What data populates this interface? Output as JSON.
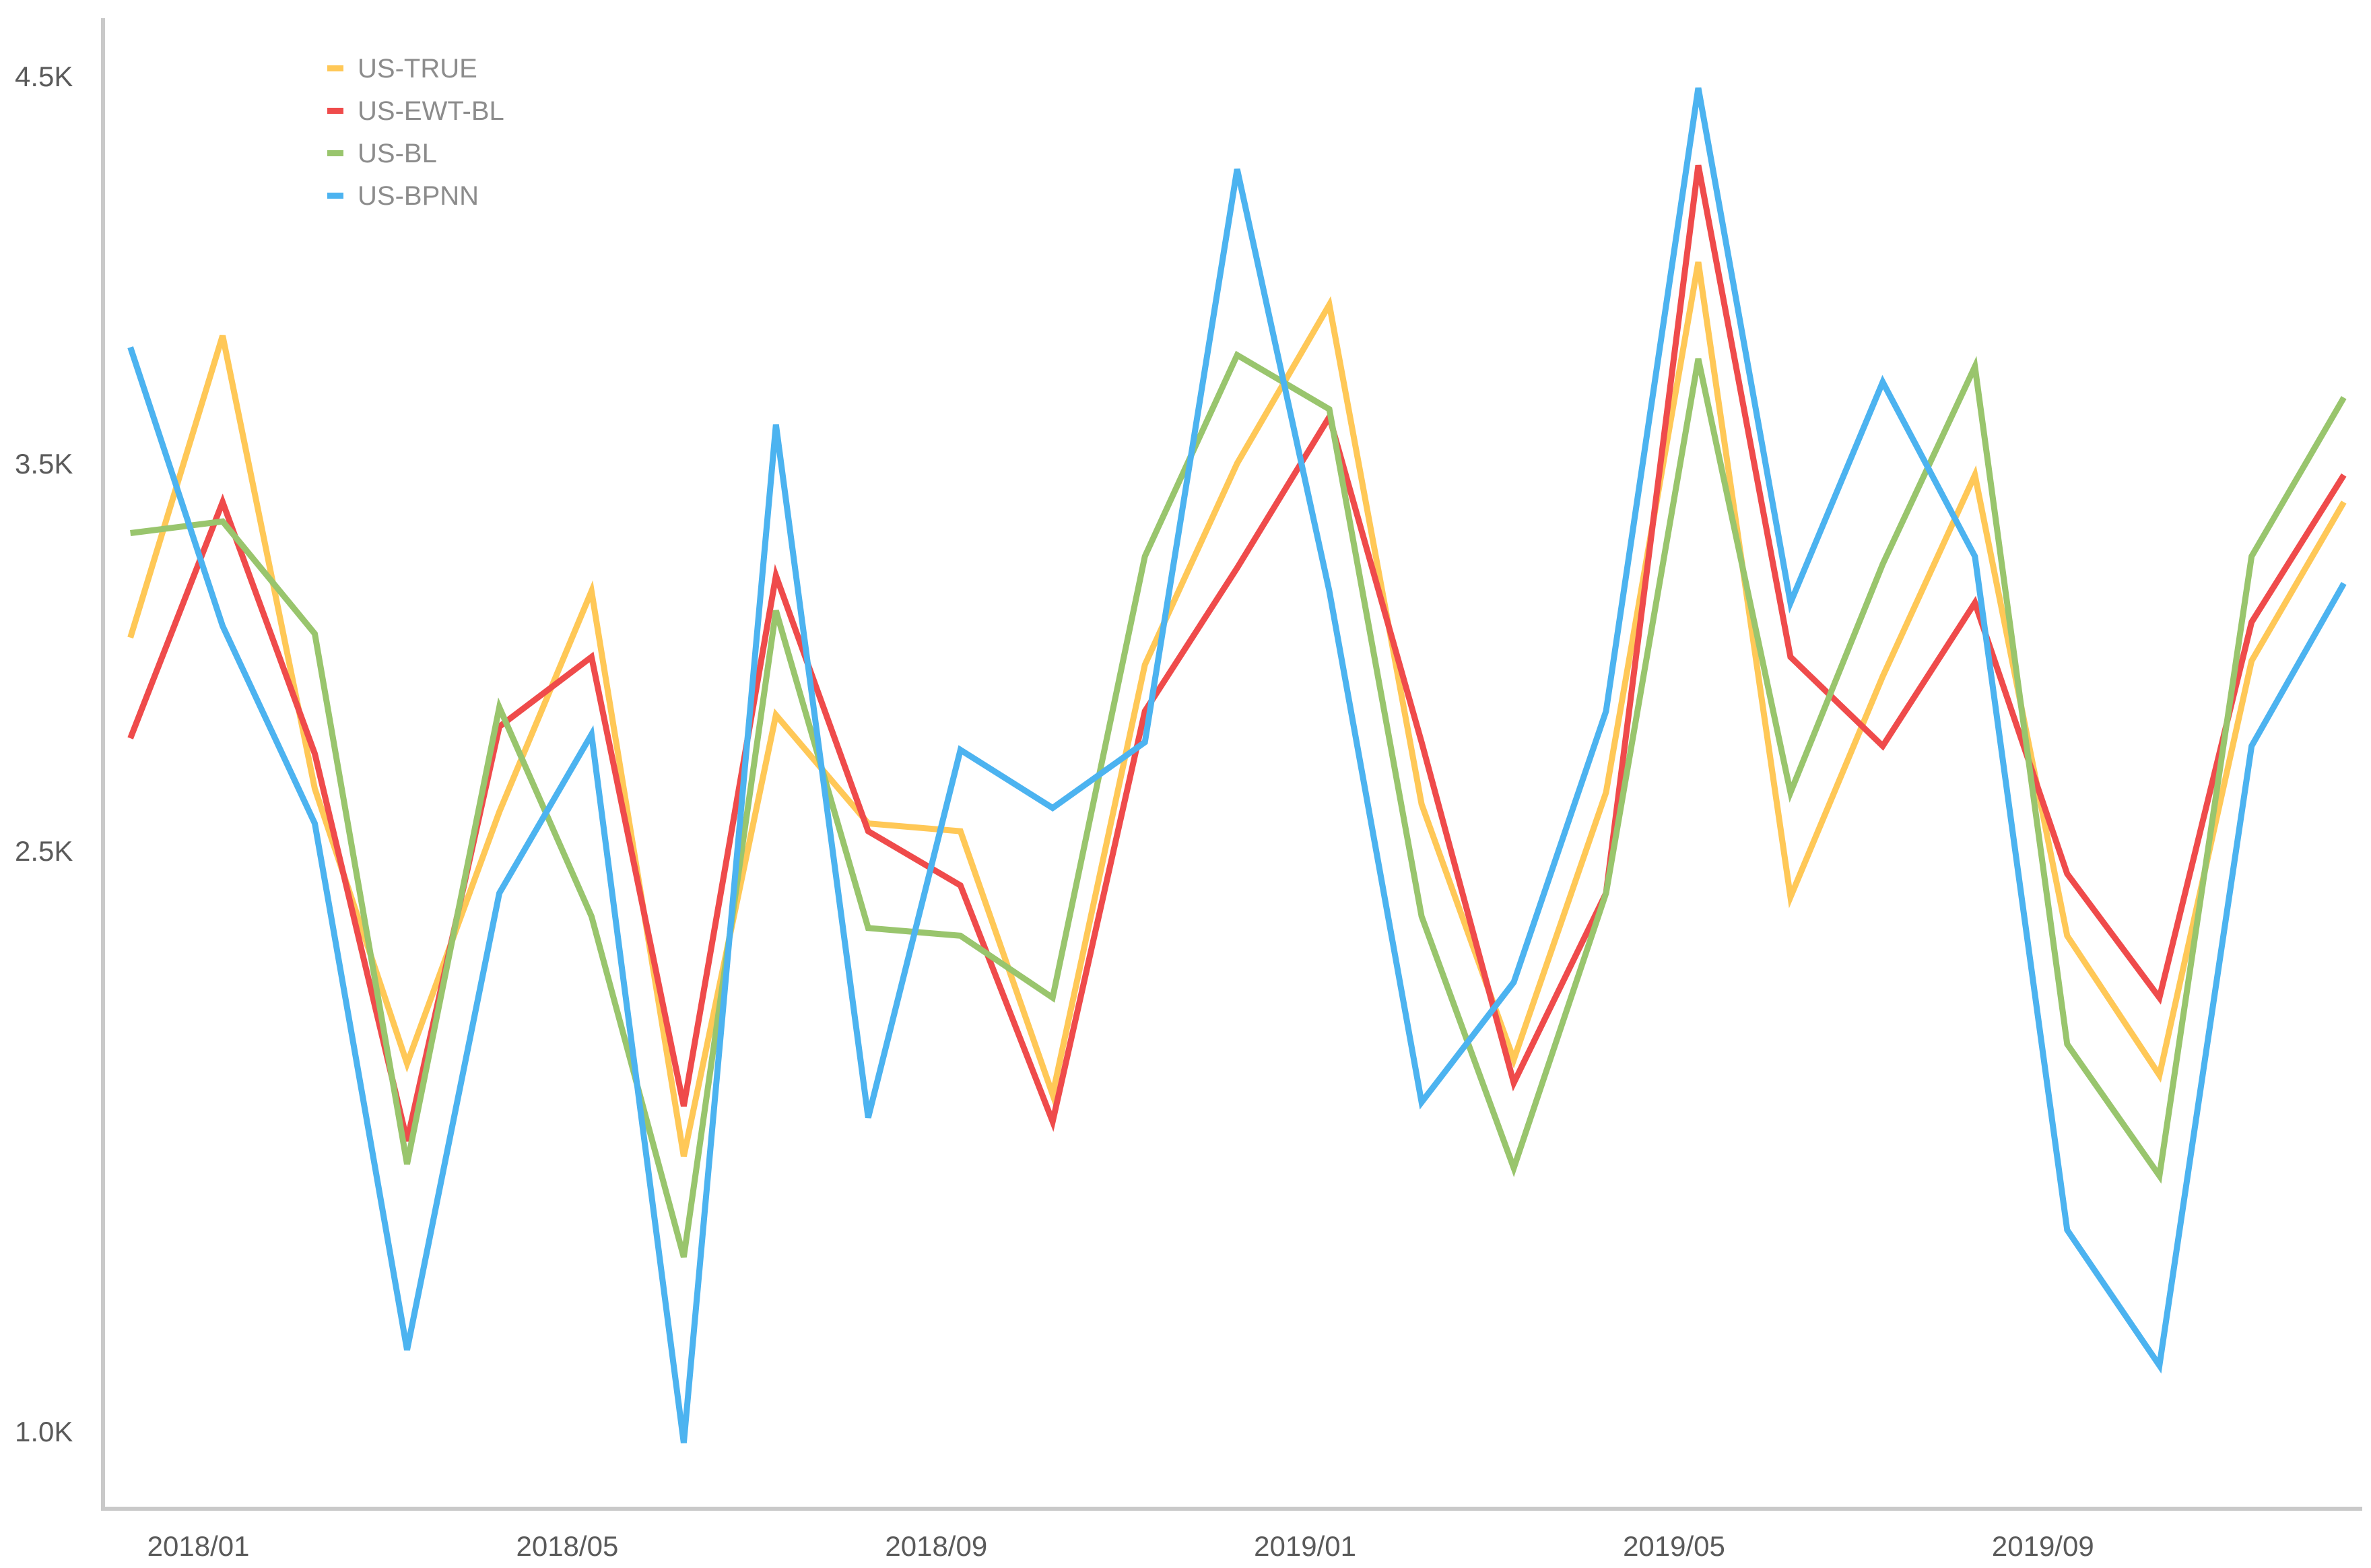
{
  "chart_data": {
    "type": "line",
    "x": [
      "2017/12",
      "2018/01",
      "2018/02",
      "2018/03",
      "2018/04",
      "2018/05",
      "2018/06",
      "2018/07",
      "2018/08",
      "2018/09",
      "2018/10",
      "2018/11",
      "2018/12",
      "2019/01",
      "2019/02",
      "2019/03",
      "2019/04",
      "2019/05",
      "2019/06",
      "2019/07",
      "2019/08",
      "2019/09",
      "2019/10",
      "2019/11",
      "2019/12"
    ],
    "x_ticks": [
      "2018/01",
      "2018/05",
      "2018/09",
      "2019/01",
      "2019/05",
      "2019/09"
    ],
    "y_ticks": [
      4500,
      3500,
      2500,
      1000
    ],
    "y_tick_labels": [
      "4.5K",
      "3.5K",
      "2.5K",
      "1.0K"
    ],
    "ylim": [
      800,
      4650
    ],
    "grid": false,
    "legend": "top-left",
    "series": [
      {
        "name": "US-TRUE",
        "color": "#FFC857",
        "values": [
          3050,
          3830,
          2660,
          1950,
          2600,
          3170,
          1710,
          2850,
          2570,
          2550,
          1870,
          2980,
          3500,
          3910,
          2620,
          1960,
          2650,
          4020,
          2380,
          2950,
          3470,
          2280,
          1920,
          2990,
          3400
        ]
      },
      {
        "name": "US-EWT-BL",
        "color": "#EF4B4B",
        "values": [
          2790,
          3400,
          2750,
          1750,
          2820,
          3000,
          1840,
          3210,
          2550,
          2410,
          1800,
          2860,
          3230,
          3620,
          2780,
          1900,
          2390,
          4270,
          3000,
          2770,
          3140,
          2440,
          2120,
          3090,
          3470
        ]
      },
      {
        "name": "US-BL",
        "color": "#99C56D",
        "values": [
          3320,
          3350,
          3060,
          1690,
          2870,
          2330,
          1450,
          3120,
          2300,
          2280,
          2120,
          3260,
          3780,
          3640,
          2330,
          1680,
          2390,
          3770,
          2650,
          3240,
          3750,
          2000,
          1660,
          3260,
          3670
        ]
      },
      {
        "name": "US-BPNN",
        "color": "#4CB3F0",
        "values": [
          3800,
          3080,
          2570,
          1210,
          2390,
          2800,
          970,
          3600,
          1810,
          2760,
          2610,
          2780,
          4260,
          3170,
          1850,
          2160,
          2860,
          4470,
          3140,
          3710,
          3260,
          1520,
          1170,
          2770,
          3190
        ]
      }
    ]
  }
}
